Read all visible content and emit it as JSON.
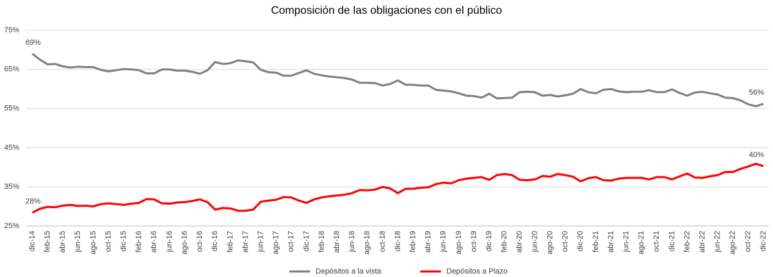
{
  "chart_data": {
    "type": "line",
    "title": "Composición de las obligaciones con el público",
    "categories": [
      "dic-14",
      null,
      "feb-15",
      null,
      "abr-15",
      null,
      "jun-15",
      null,
      "ago-15",
      null,
      "oct-15",
      null,
      "dic-15",
      null,
      "feb-16",
      null,
      "abr-16",
      null,
      "jun-16",
      null,
      "ago-16",
      null,
      "oct-16",
      null,
      "dic-16",
      null,
      "feb-17",
      null,
      "abr-17",
      null,
      "jun-17",
      null,
      "ago-17",
      null,
      "oct-17",
      null,
      "dic-17",
      null,
      "feb-18",
      null,
      "abr-18",
      null,
      "jun-18",
      null,
      "ago-18",
      null,
      "oct-18",
      null,
      "dic-18",
      null,
      "feb-19",
      null,
      "abr-19",
      null,
      "jun-19",
      null,
      "ago-19",
      null,
      "oct-19",
      null,
      "dic-19",
      null,
      "feb-20",
      null,
      "abr-20",
      null,
      "jun-20",
      null,
      "ago-20",
      null,
      "oct-20",
      null,
      "dic-20",
      null,
      "feb-21",
      null,
      "abr-21",
      null,
      "jun-21",
      null,
      "ago-21",
      null,
      "oct-21",
      null,
      "dic-21",
      null,
      "feb-22",
      null,
      "abr-22",
      null,
      "jun-22",
      null,
      "ago-22",
      null,
      "oct-22",
      null,
      "dic-22"
    ],
    "series": [
      {
        "name": "Depósitos a la vista",
        "color": "#808080",
        "values": [
          69,
          67.5,
          66.3,
          66.4,
          65.8,
          65.5,
          65.7,
          65.6,
          65.6,
          64.9,
          64.5,
          64.8,
          65.1,
          65.0,
          64.8,
          64.0,
          64.0,
          65.0,
          65.0,
          64.7,
          64.7,
          64.4,
          63.9,
          64.8,
          66.9,
          66.4,
          66.6,
          67.3,
          67.1,
          66.8,
          64.9,
          64.3,
          64.2,
          63.4,
          63.4,
          64.1,
          64.8,
          63.9,
          63.5,
          63.2,
          63.0,
          62.8,
          62.4,
          61.6,
          61.6,
          61.5,
          60.9,
          61.3,
          62.2,
          61.1,
          61.1,
          60.9,
          60.9,
          59.8,
          59.6,
          59.4,
          58.9,
          58.3,
          58.2,
          57.8,
          58.8,
          57.6,
          57.7,
          57.8,
          59.2,
          59.3,
          59.2,
          58.3,
          58.5,
          58.1,
          58.4,
          58.8,
          60.0,
          59.2,
          58.9,
          59.8,
          60.0,
          59.4,
          59.2,
          59.3,
          59.3,
          59.7,
          59.2,
          59.2,
          59.9,
          59.0,
          58.3,
          59.1,
          59.3,
          58.9,
          58.6,
          57.8,
          57.7,
          57.1,
          56.1,
          55.6,
          56.2
        ],
        "value_labels": [
          "69%",
          null,
          null,
          null,
          null,
          null,
          null,
          null,
          null,
          null,
          null,
          null,
          null,
          null,
          null,
          null,
          null,
          null,
          null,
          null,
          null,
          null,
          null,
          null,
          null,
          null,
          null,
          null,
          null,
          null,
          null,
          null,
          null,
          null,
          null,
          null,
          null,
          null,
          null,
          null,
          null,
          null,
          null,
          null,
          null,
          null,
          null,
          null,
          null,
          null,
          null,
          null,
          null,
          null,
          null,
          null,
          null,
          null,
          null,
          null,
          null,
          null,
          null,
          null,
          null,
          null,
          null,
          null,
          null,
          null,
          null,
          null,
          null,
          null,
          null,
          null,
          null,
          null,
          null,
          null,
          null,
          null,
          null,
          null,
          null,
          null,
          null,
          null,
          null,
          null,
          null,
          null,
          null,
          null,
          null,
          null,
          "56%"
        ]
      },
      {
        "name": "Depósitos a Plazo",
        "color": "#ff0000",
        "values": [
          28.4,
          29.4,
          29.9,
          29.8,
          30.2,
          30.4,
          30.1,
          30.2,
          30.0,
          30.6,
          30.8,
          30.6,
          30.4,
          30.7,
          30.9,
          31.9,
          31.8,
          30.8,
          30.7,
          31.0,
          31.1,
          31.4,
          31.8,
          31.1,
          29.2,
          29.6,
          29.5,
          28.9,
          28.9,
          29.2,
          31.2,
          31.5,
          31.7,
          32.4,
          32.3,
          31.5,
          30.9,
          31.8,
          32.3,
          32.6,
          32.8,
          33.0,
          33.4,
          34.2,
          34.1,
          34.3,
          35.0,
          34.6,
          33.4,
          34.5,
          34.5,
          34.8,
          34.9,
          35.7,
          36.1,
          35.9,
          36.7,
          37.1,
          37.3,
          37.5,
          36.8,
          38.0,
          38.3,
          38.0,
          36.8,
          36.7,
          36.9,
          37.8,
          37.6,
          38.3,
          38.0,
          37.6,
          36.4,
          37.2,
          37.5,
          36.7,
          36.6,
          37.1,
          37.3,
          37.3,
          37.3,
          36.9,
          37.5,
          37.5,
          36.9,
          37.7,
          38.4,
          37.4,
          37.3,
          37.7,
          38.0,
          38.8,
          38.8,
          39.6,
          40.2,
          40.9,
          40.3
        ],
        "value_labels": [
          "28%",
          null,
          null,
          null,
          null,
          null,
          null,
          null,
          null,
          null,
          null,
          null,
          null,
          null,
          null,
          null,
          null,
          null,
          null,
          null,
          null,
          null,
          null,
          null,
          null,
          null,
          null,
          null,
          null,
          null,
          null,
          null,
          null,
          null,
          null,
          null,
          null,
          null,
          null,
          null,
          null,
          null,
          null,
          null,
          null,
          null,
          null,
          null,
          null,
          null,
          null,
          null,
          null,
          null,
          null,
          null,
          null,
          null,
          null,
          null,
          null,
          null,
          null,
          null,
          null,
          null,
          null,
          null,
          null,
          null,
          null,
          null,
          null,
          null,
          null,
          null,
          null,
          null,
          null,
          null,
          null,
          null,
          null,
          null,
          null,
          null,
          null,
          null,
          null,
          null,
          null,
          null,
          null,
          null,
          null,
          null,
          "40%"
        ]
      }
    ],
    "ylim": [
      25,
      75
    ],
    "yticks": [
      {
        "value": 25,
        "label": "25%"
      },
      {
        "value": 35,
        "label": "35%"
      },
      {
        "value": 45,
        "label": "45%"
      },
      {
        "value": 55,
        "label": "55%"
      },
      {
        "value": 65,
        "label": "65%"
      },
      {
        "value": 75,
        "label": "75%"
      }
    ],
    "grid": true,
    "legend": "bottom"
  }
}
